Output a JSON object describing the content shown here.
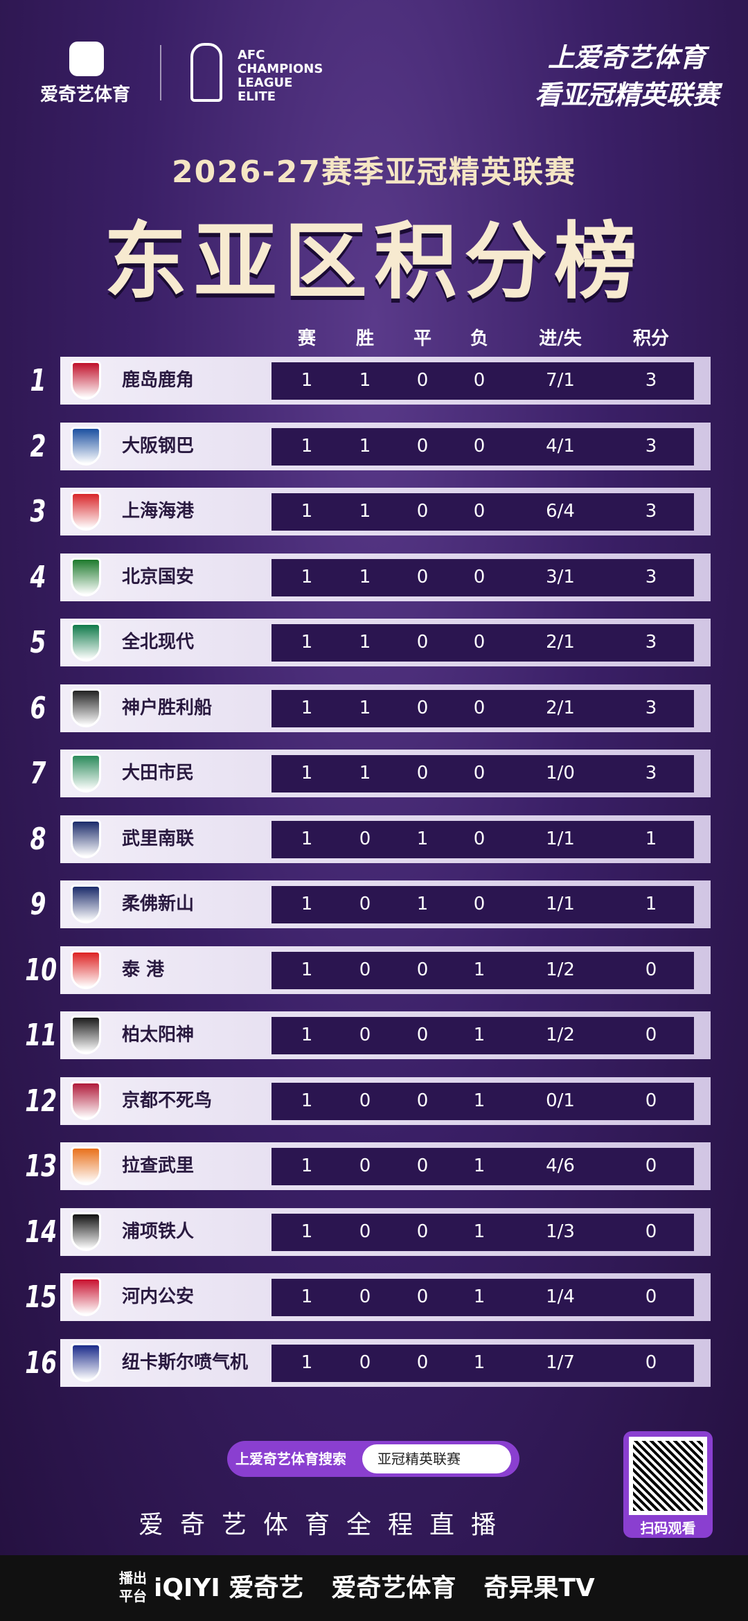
{
  "header": {
    "brand": "爱奇艺体育",
    "afc": [
      "AFC",
      "CHAMPIONS",
      "LEAGUE",
      "ELITE"
    ],
    "slogan": [
      "上爱奇艺体育",
      "看亚冠精英联赛"
    ]
  },
  "title": "2026-27赛季亚冠精英联赛",
  "subtitle": "东亚区积分榜",
  "table": {
    "columns": [
      "赛",
      "胜",
      "平",
      "负",
      "进/失",
      "积分"
    ],
    "rows": [
      [
        1,
        "鹿岛鹿角",
        1,
        1,
        0,
        0,
        "7/1",
        3
      ],
      [
        2,
        "大阪钢巴",
        1,
        1,
        0,
        0,
        "4/1",
        3
      ],
      [
        3,
        "上海海港",
        1,
        1,
        0,
        0,
        "6/4",
        3
      ],
      [
        4,
        "北京国安",
        1,
        1,
        0,
        0,
        "3/1",
        3
      ],
      [
        5,
        "全北现代",
        1,
        1,
        0,
        0,
        "2/1",
        3
      ],
      [
        6,
        "神户胜利船",
        1,
        1,
        0,
        0,
        "2/1",
        3
      ],
      [
        7,
        "大田市民",
        1,
        1,
        0,
        0,
        "1/0",
        3
      ],
      [
        8,
        "武里南联",
        1,
        0,
        1,
        0,
        "1/1",
        1
      ],
      [
        9,
        "柔佛新山",
        1,
        0,
        1,
        0,
        "1/1",
        1
      ],
      [
        10,
        "泰 港",
        1,
        0,
        0,
        1,
        "1/2",
        0
      ],
      [
        11,
        "柏太阳神",
        1,
        0,
        0,
        1,
        "1/2",
        0
      ],
      [
        12,
        "京都不死鸟",
        1,
        0,
        0,
        1,
        "0/1",
        0
      ],
      [
        13,
        "拉查武里",
        1,
        0,
        0,
        1,
        "4/6",
        0
      ],
      [
        14,
        "浦项铁人",
        1,
        0,
        0,
        1,
        "1/3",
        0
      ],
      [
        15,
        "河内公安",
        1,
        0,
        0,
        1,
        "1/4",
        0
      ],
      [
        16,
        "纽卡斯尔喷气机",
        1,
        0,
        0,
        1,
        "1/7",
        0
      ]
    ]
  },
  "footer": {
    "search_label": "上爱奇艺体育搜索",
    "search_query": "亚冠精英联赛",
    "qr_caption": "扫码观看",
    "tagline": "爱奇艺体育全程直播",
    "broadcast_label": [
      "播出",
      "平台"
    ],
    "platforms": [
      "iQIYI 爱奇艺",
      "爱奇艺体育",
      "奇异果TV"
    ]
  }
}
